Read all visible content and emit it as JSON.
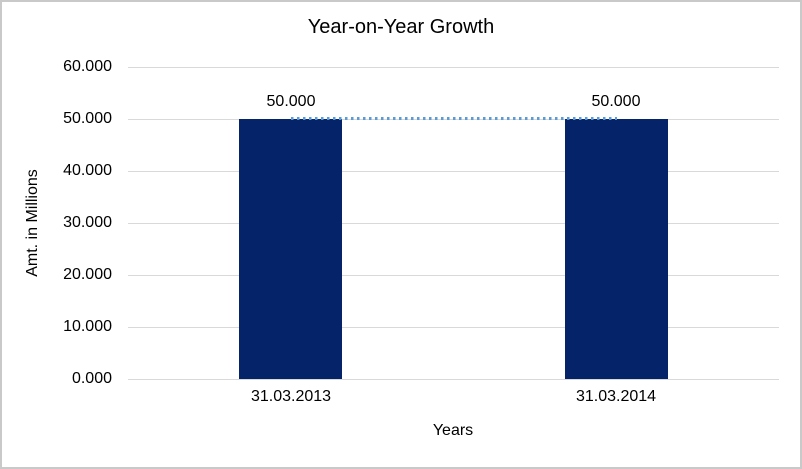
{
  "chart_data": {
    "type": "bar",
    "title": "Year-on-Year Growth",
    "xlabel": "Years",
    "ylabel": "Amt. in Millions",
    "categories": [
      "31.03.2013",
      "31.03.2014"
    ],
    "values": [
      50000,
      50000
    ],
    "value_labels": [
      "50.000",
      "50.000"
    ],
    "ylim": [
      0,
      60000
    ],
    "yticks": [
      0,
      10000,
      20000,
      30000,
      40000,
      50000,
      60000
    ],
    "ytick_labels": [
      "0.000",
      "10.000",
      "20.000",
      "30.000",
      "40.000",
      "50.000",
      "60.000"
    ],
    "grid": "horizontal-only",
    "legend": "none",
    "bar_color": "#052369",
    "gridline_color": "#d9d9d9",
    "text_color": "#000000",
    "frame_border_color": "#c9c9c9",
    "connector_line": {
      "type": "line",
      "style": "dotted",
      "color": "#5b9bd5",
      "values": [
        50000,
        50000
      ]
    }
  }
}
